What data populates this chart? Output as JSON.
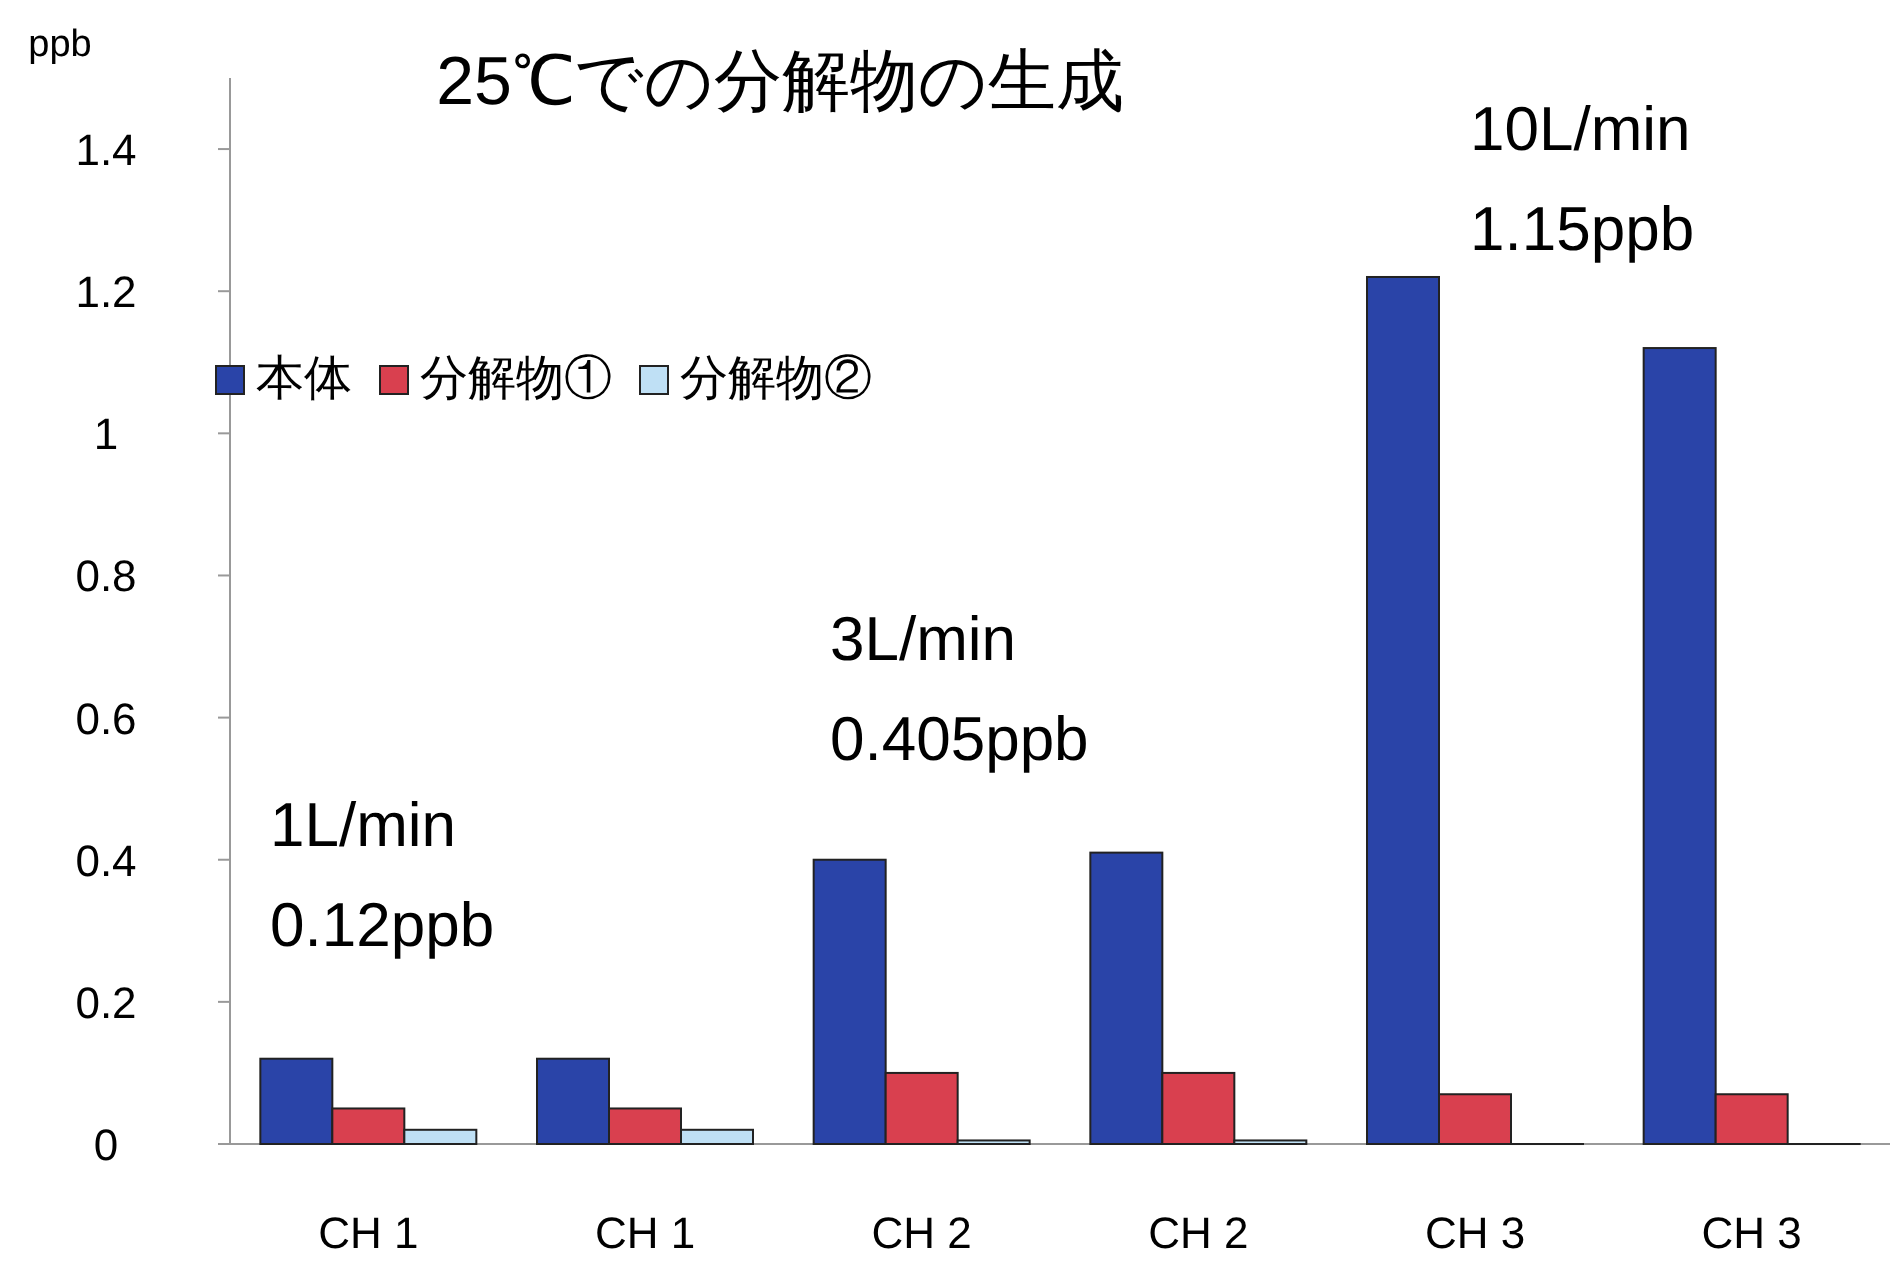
{
  "chart_data": {
    "type": "bar",
    "title": "25℃での分解物の生成",
    "ylabel": "ppb",
    "categories": [
      "CH 1",
      "CH 1",
      "CH 2",
      "CH 2",
      "CH 3",
      "CH 3"
    ],
    "series": [
      {
        "name": "本体",
        "color": "#2a44a8",
        "values": [
          0.12,
          0.12,
          0.4,
          0.41,
          1.22,
          1.12
        ]
      },
      {
        "name": "分解物①",
        "color": "#d9404f",
        "values": [
          0.05,
          0.05,
          0.1,
          0.1,
          0.07,
          0.07
        ]
      },
      {
        "name": "分解物②",
        "color": "#bfe0f5",
        "values": [
          0.02,
          0.02,
          0.005,
          0.005,
          0,
          0
        ]
      }
    ],
    "ylim": [
      0,
      1.5
    ],
    "yticks": [
      0,
      0.2,
      0.4,
      0.6,
      0.8,
      1,
      1.2,
      1.4
    ],
    "grid": false,
    "legend": "top left",
    "annotations": [
      "1L/min\n0.12ppb",
      "3L/min\n0.405ppb",
      "10L/min\n1.15ppb"
    ]
  }
}
